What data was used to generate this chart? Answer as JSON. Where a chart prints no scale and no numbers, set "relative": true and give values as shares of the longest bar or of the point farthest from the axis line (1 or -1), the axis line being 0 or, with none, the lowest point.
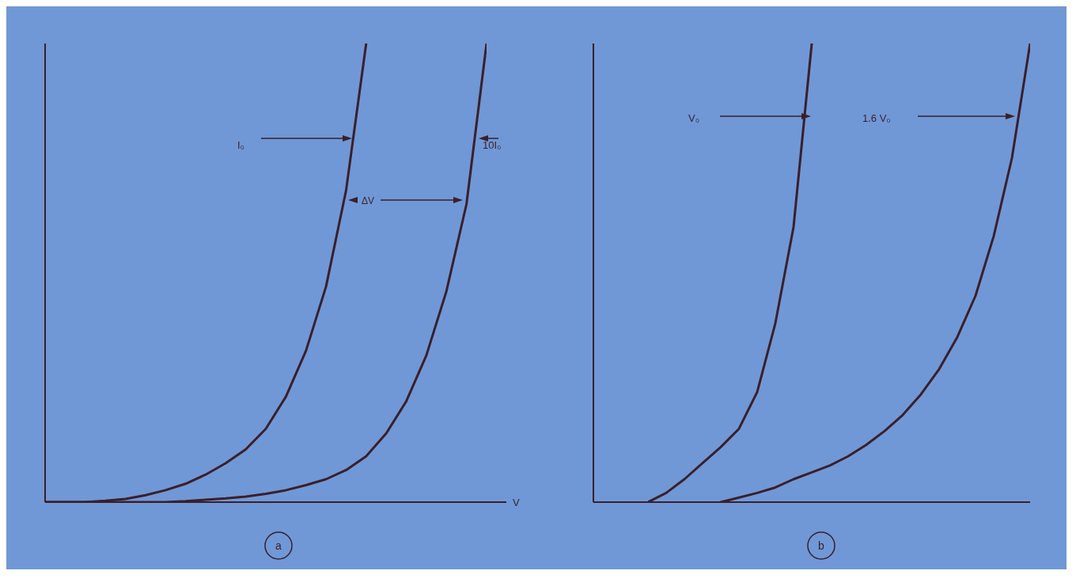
{
  "chart_data": [
    {
      "type": "line",
      "relative": true,
      "xlabel": "V",
      "legend": false,
      "marker": "none",
      "line_style": "solid",
      "categories": [
        null,
        null,
        null,
        null,
        null,
        null,
        null,
        null,
        null,
        null,
        null,
        null,
        null,
        null,
        null,
        null,
        null,
        null,
        null,
        null,
        null,
        null,
        null
      ],
      "series": [
        {
          "color": "#3a1f2a",
          "values": [
            0,
            0,
            0,
            0.003,
            0.007,
            0.015,
            0.026,
            0.04,
            0.06,
            0.085,
            0.115,
            0.16,
            0.23,
            0.33,
            0.47,
            0.68,
            1.0,
            null,
            null,
            null,
            null,
            null,
            null
          ]
        },
        {
          "color": "#3a1f2a",
          "values": [
            0,
            0,
            0,
            0,
            0,
            0,
            0,
            0.002,
            0.005,
            0.008,
            0.012,
            0.018,
            0.026,
            0.037,
            0.05,
            0.07,
            0.1,
            0.15,
            0.22,
            0.32,
            0.46,
            0.65,
            1.0
          ]
        }
      ],
      "annotations": [
        "I₀",
        "10I₀",
        "ΔV",
        "a"
      ]
    },
    {
      "type": "line",
      "relative": true,
      "legend": false,
      "marker": "none",
      "line_style": "solid",
      "categories": [
        null,
        null,
        null,
        null,
        null,
        null,
        null,
        null,
        null,
        null,
        null,
        null,
        null,
        null,
        null,
        null,
        null,
        null,
        null,
        null,
        null,
        null
      ],
      "series": [
        {
          "color": "#3a1f2a",
          "values": [
            0,
            0.02,
            0.05,
            0.085,
            0.12,
            0.16,
            0.24,
            0.39,
            0.6,
            1.0,
            null,
            null,
            null,
            null,
            null,
            null,
            null,
            null,
            null,
            null,
            null,
            null
          ]
        },
        {
          "color": "#3a1f2a",
          "values": [
            null,
            null,
            null,
            null,
            0,
            0.01,
            0.02,
            0.032,
            0.05,
            0.065,
            0.08,
            0.1,
            0.125,
            0.155,
            0.19,
            0.235,
            0.29,
            0.36,
            0.45,
            0.58,
            0.75,
            1.0
          ]
        }
      ],
      "annotations": [
        "V₀",
        "1.6 V₀",
        "b"
      ]
    }
  ]
}
